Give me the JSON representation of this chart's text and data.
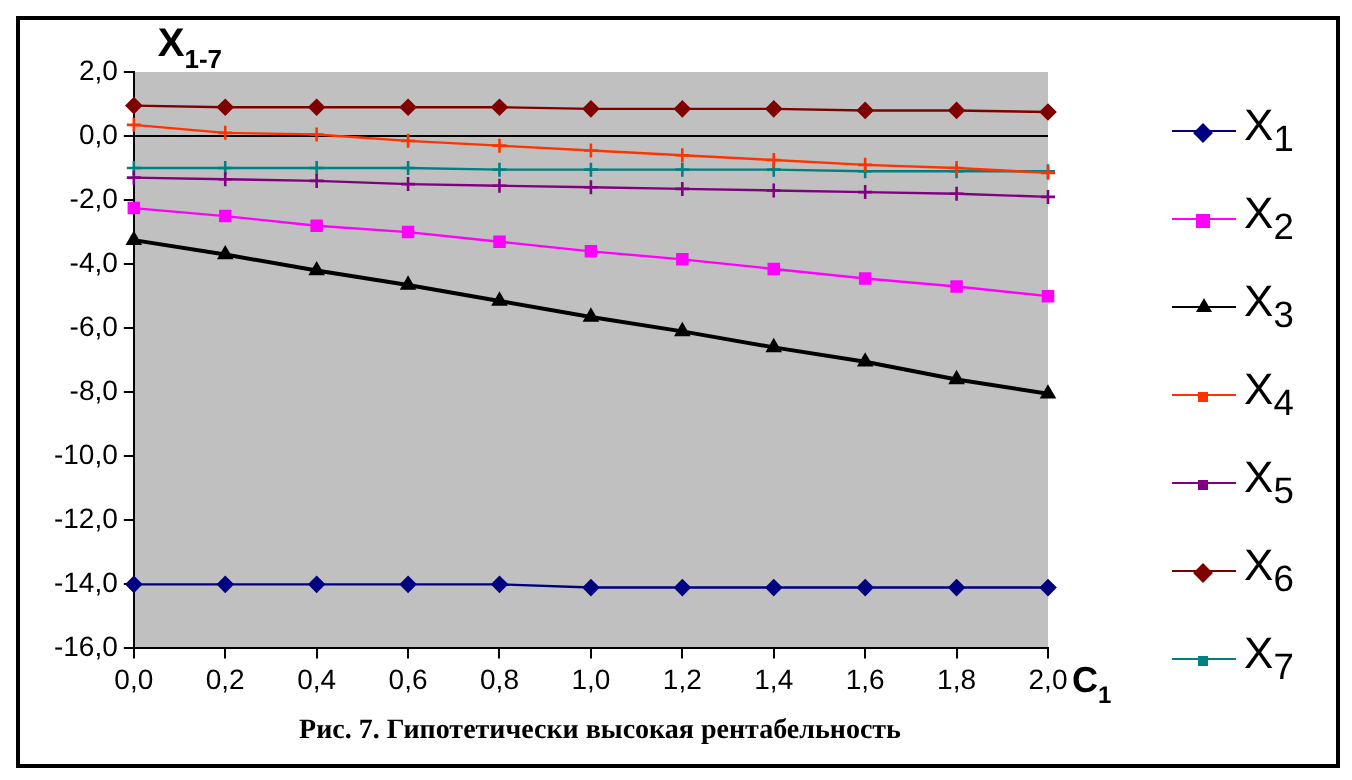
{
  "chart_data": {
    "type": "line",
    "ylabel": "X$_{1-7}$",
    "xlabel": "C$_{1}$",
    "annotations": [
      "Рис. 7. Гипотетически высокая рентабельность"
    ],
    "categories": [
      "0,0",
      "0,2",
      "0,4",
      "0,6",
      "0,8",
      "1,0",
      "1,2",
      "1,4",
      "1,6",
      "1,8",
      "2,0"
    ],
    "series": [
      {
        "name": "X$_{1}$",
        "color": "#000080",
        "marker": "diamond",
        "values": [
          -14.0,
          -14.0,
          -14.0,
          -14.0,
          -14.0,
          -14.1,
          -14.1,
          -14.1,
          -14.1,
          -14.1,
          -14.1
        ]
      },
      {
        "name": "X$_{2}$",
        "color": "#ff00ff",
        "marker": "square",
        "values": [
          -2.25,
          -2.5,
          -2.8,
          -3.0,
          -3.3,
          -3.6,
          -3.85,
          -4.15,
          -4.45,
          -4.7,
          -5.0
        ]
      },
      {
        "name": "X$_{3}$",
        "color": "#000000",
        "marker": "triangle",
        "values": [
          -3.25,
          -3.7,
          -4.2,
          -4.65,
          -5.15,
          -5.65,
          -6.1,
          -6.6,
          -7.05,
          -7.6,
          -8.05
        ]
      },
      {
        "name": "X$_{4}$",
        "color": "#ff3300",
        "marker": "cross",
        "values": [
          0.35,
          0.1,
          0.05,
          -0.15,
          -0.3,
          -0.45,
          -0.6,
          -0.75,
          -0.9,
          -1.0,
          -1.15
        ]
      },
      {
        "name": "X$_{5}$",
        "color": "#800080",
        "marker": "cross",
        "values": [
          -1.3,
          -1.35,
          -1.4,
          -1.5,
          -1.55,
          -1.6,
          -1.65,
          -1.7,
          -1.75,
          -1.8,
          -1.9
        ]
      },
      {
        "name": "X$_{6}$",
        "color": "#800000",
        "marker": "diamond",
        "values": [
          0.95,
          0.9,
          0.9,
          0.9,
          0.9,
          0.85,
          0.85,
          0.85,
          0.8,
          0.8,
          0.75
        ]
      },
      {
        "name": "X$_{7}$",
        "color": "#008080",
        "marker": "cross",
        "values": [
          -1.0,
          -1.0,
          -1.0,
          -1.0,
          -1.05,
          -1.05,
          -1.05,
          -1.05,
          -1.1,
          -1.1,
          -1.1
        ]
      }
    ],
    "ylim": [
      -16,
      2
    ],
    "yticks": [
      {
        "value": 2,
        "label": "2,0"
      },
      {
        "value": 0,
        "label": "0,0"
      },
      {
        "value": -2,
        "label": "-2,0"
      },
      {
        "value": -4,
        "label": "-4,0"
      },
      {
        "value": -6,
        "label": "-6,0"
      },
      {
        "value": -8,
        "label": "-8,0"
      },
      {
        "value": -10,
        "label": "-10,0"
      },
      {
        "value": -12,
        "label": "-12,0"
      },
      {
        "value": -14,
        "label": "-14,0"
      },
      {
        "value": -16,
        "label": "-16,0"
      }
    ],
    "ref_lines": [
      {
        "axis": "y",
        "value": 0,
        "color": "#000000"
      }
    ],
    "grid": false,
    "legend": "right",
    "line_style": "solid"
  }
}
